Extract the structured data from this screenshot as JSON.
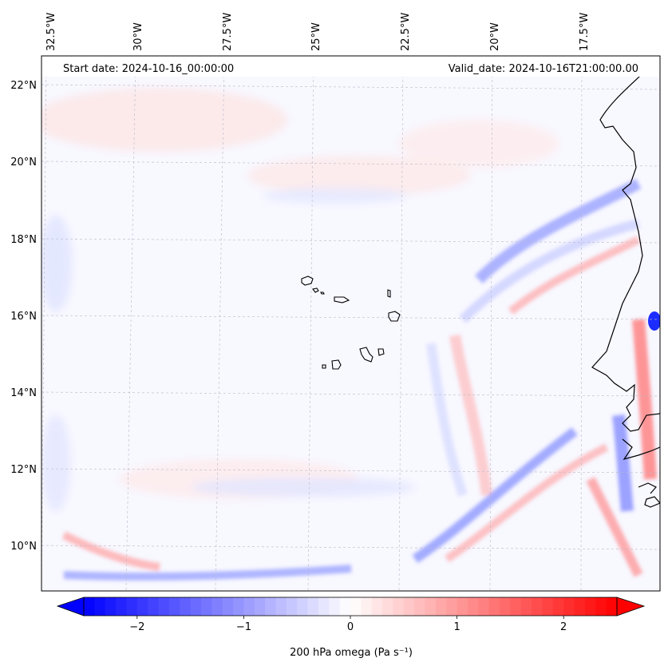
{
  "map": {
    "start_date_text": "Start date: 2024-10-16_00:00:00",
    "valid_date_text": "Valid_date: 2024-10-16T21:00:00.00",
    "lon_labels": [
      "32.5°W",
      "30°W",
      "27.5°W",
      "25°W",
      "22.5°W",
      "20°W",
      "17.5°W"
    ],
    "lat_labels": [
      "22°N",
      "20°N",
      "18°N",
      "16°N",
      "14°N",
      "12°N",
      "10°N"
    ],
    "colors": {
      "negative": "#0000ff",
      "positive": "#ff0000",
      "neutral": "#ffffff",
      "coastline": "#000000"
    }
  },
  "colorbar": {
    "label": "200 hPa omega (Pa s⁻¹)",
    "ticks": [
      "−2",
      "−1",
      "0",
      "1",
      "2"
    ],
    "tick_values": [
      -2,
      -1,
      0,
      1,
      2
    ],
    "range": [
      -2.5,
      2.5
    ]
  }
}
